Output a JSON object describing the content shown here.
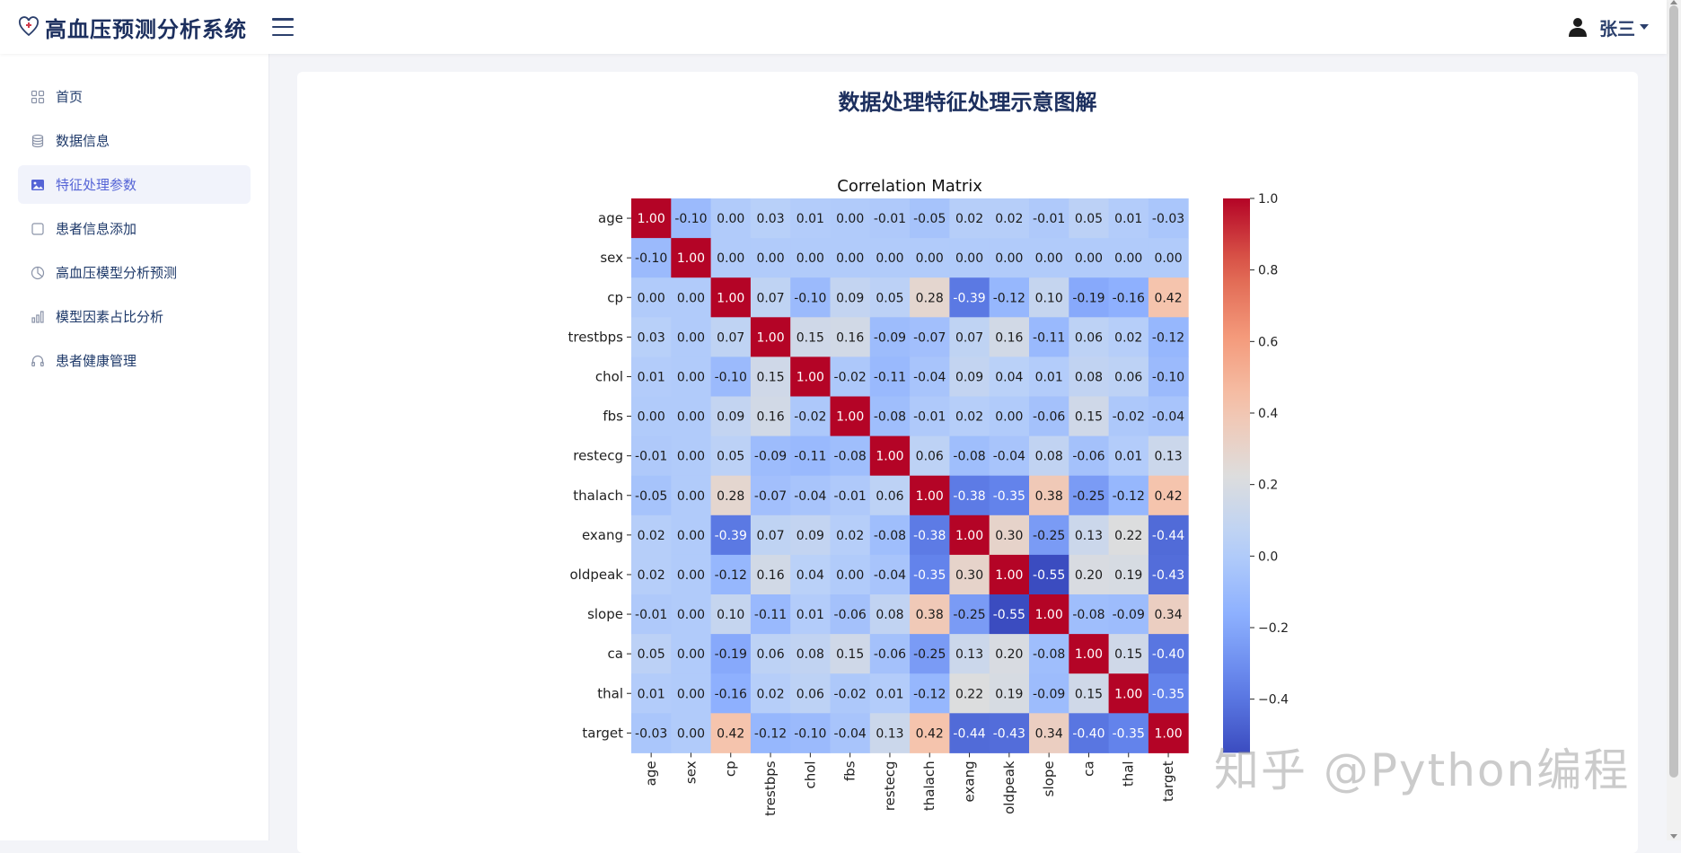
{
  "app": {
    "title": "高血压预测分析系统",
    "user_name": "张三",
    "icons": {
      "logo": "heart-stethoscope-icon",
      "menu": "hamburger-icon",
      "user": "user-icon"
    }
  },
  "sidebar": {
    "items": [
      {
        "label": "首页",
        "icon": "grid-icon",
        "active": false
      },
      {
        "label": "数据信息",
        "icon": "database-icon",
        "active": false
      },
      {
        "label": "特征处理参数",
        "icon": "image-icon",
        "active": true
      },
      {
        "label": "患者信息添加",
        "icon": "checkbox-icon",
        "active": false
      },
      {
        "label": "高血压模型分析预测",
        "icon": "pie-chart-icon",
        "active": false
      },
      {
        "label": "模型因素占比分析",
        "icon": "bar-chart-icon",
        "active": false
      },
      {
        "label": "患者健康管理",
        "icon": "headset-icon",
        "active": false
      }
    ]
  },
  "main": {
    "title": "数据处理特征处理示意图解",
    "watermark": "知乎 @Python编程"
  },
  "chart_data": {
    "type": "heatmap",
    "title": "Correlation Matrix",
    "labels": [
      "age",
      "sex",
      "cp",
      "trestbps",
      "chol",
      "fbs",
      "restecg",
      "thalach",
      "exang",
      "oldpeak",
      "slope",
      "ca",
      "thal",
      "target"
    ],
    "matrix": [
      [
        1.0,
        -0.1,
        -0.0,
        0.03,
        0.01,
        -0.0,
        -0.01,
        -0.05,
        0.02,
        0.02,
        -0.01,
        0.05,
        0.01,
        -0.03
      ],
      [
        -0.1,
        1.0,
        0.0,
        -0.0,
        0.0,
        0.0,
        -0.0,
        0.0,
        0.0,
        0.0,
        -0.0,
        0.0,
        -0.0,
        0.0
      ],
      [
        -0.0,
        0.0,
        1.0,
        0.07,
        -0.1,
        0.09,
        0.05,
        0.28,
        -0.39,
        -0.12,
        0.1,
        -0.19,
        -0.16,
        0.42
      ],
      [
        0.03,
        -0.0,
        0.07,
        1.0,
        0.15,
        0.16,
        -0.09,
        -0.07,
        0.07,
        0.16,
        -0.11,
        0.06,
        0.02,
        -0.12
      ],
      [
        0.01,
        0.0,
        -0.1,
        0.15,
        1.0,
        -0.02,
        -0.11,
        -0.04,
        0.09,
        0.04,
        0.01,
        0.08,
        0.06,
        -0.1
      ],
      [
        -0.0,
        0.0,
        0.09,
        0.16,
        -0.02,
        1.0,
        -0.08,
        -0.01,
        0.02,
        0.0,
        -0.06,
        0.15,
        -0.02,
        -0.04
      ],
      [
        -0.01,
        -0.0,
        0.05,
        -0.09,
        -0.11,
        -0.08,
        1.0,
        0.06,
        -0.08,
        -0.04,
        0.08,
        -0.06,
        0.01,
        0.13
      ],
      [
        -0.05,
        0.0,
        0.28,
        -0.07,
        -0.04,
        -0.01,
        0.06,
        1.0,
        -0.38,
        -0.35,
        0.38,
        -0.25,
        -0.12,
        0.42
      ],
      [
        0.02,
        0.0,
        -0.39,
        0.07,
        0.09,
        0.02,
        -0.08,
        -0.38,
        1.0,
        0.3,
        -0.25,
        0.13,
        0.22,
        -0.44
      ],
      [
        0.02,
        0.0,
        -0.12,
        0.16,
        0.04,
        0.0,
        -0.04,
        -0.35,
        0.3,
        1.0,
        -0.55,
        0.2,
        0.19,
        -0.43
      ],
      [
        -0.01,
        -0.0,
        0.1,
        -0.11,
        0.01,
        -0.06,
        0.08,
        0.38,
        -0.25,
        -0.55,
        1.0,
        -0.08,
        -0.09,
        0.34
      ],
      [
        0.05,
        0.0,
        -0.19,
        0.06,
        0.08,
        0.15,
        -0.06,
        -0.25,
        0.13,
        0.2,
        -0.08,
        1.0,
        0.15,
        -0.4
      ],
      [
        0.01,
        -0.0,
        -0.16,
        0.02,
        0.06,
        -0.02,
        0.01,
        -0.12,
        0.22,
        0.19,
        -0.09,
        0.15,
        1.0,
        -0.35
      ],
      [
        -0.03,
        0.0,
        0.42,
        -0.12,
        -0.1,
        -0.04,
        0.13,
        0.42,
        -0.44,
        -0.43,
        0.34,
        -0.4,
        -0.35,
        1.0
      ]
    ],
    "colormap": "coolwarm",
    "vmin": -0.55,
    "vmax": 1.0,
    "colorbar_ticks": [
      "1.0",
      "0.8",
      "0.6",
      "0.4",
      "0.2",
      "0.0",
      "−0.2",
      "−0.4"
    ],
    "colorbar_tick_values": [
      1.0,
      0.8,
      0.6,
      0.4,
      0.2,
      0.0,
      -0.2,
      -0.4
    ]
  }
}
